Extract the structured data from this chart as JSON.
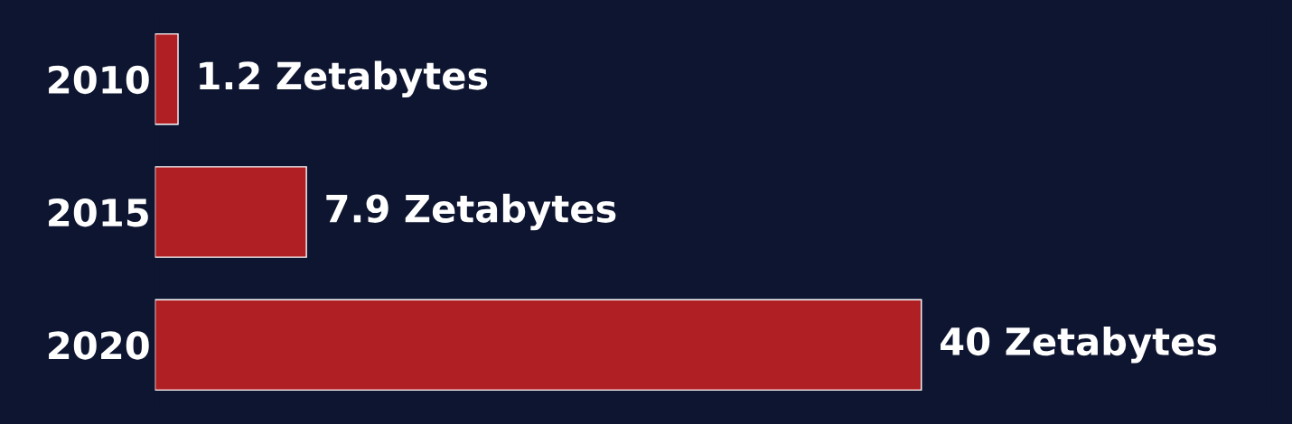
{
  "chart_data": {
    "type": "bar",
    "orientation": "horizontal",
    "categories": [
      "2010",
      "2015",
      "2020"
    ],
    "values": [
      1.2,
      7.9,
      40
    ],
    "value_labels": [
      "1.2 Zetabytes",
      "7.9 Zetabytes",
      "40 Zetabytes"
    ],
    "color": "#b01f24",
    "tick_labels": "y",
    "grid": false,
    "legend": false
  }
}
